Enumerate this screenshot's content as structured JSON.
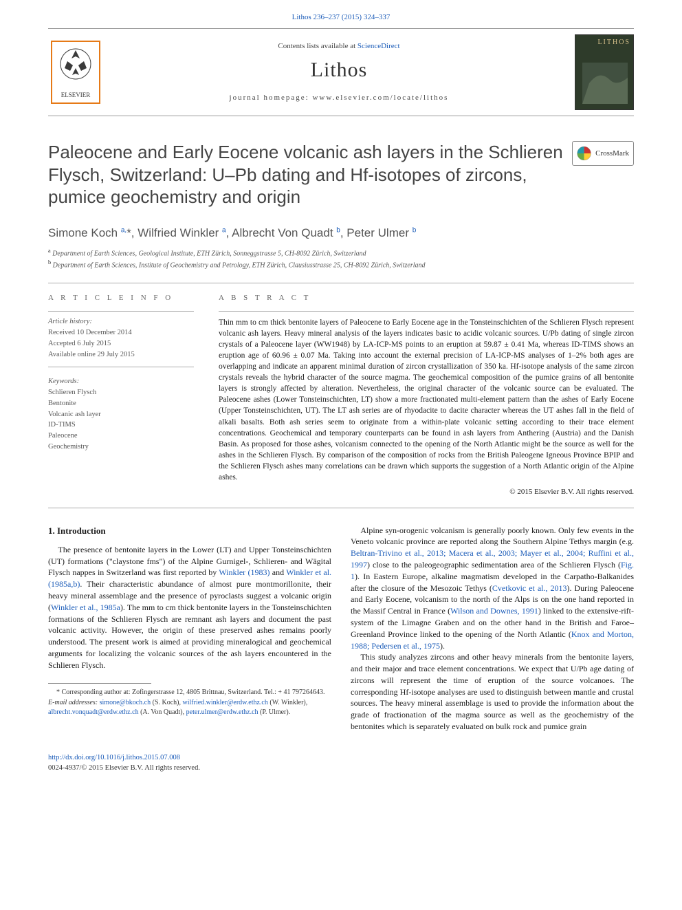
{
  "header": {
    "citation": "Lithos 236–237 (2015) 324–337",
    "contents_prefix": "Contents lists available at ",
    "contents_link": "ScienceDirect",
    "journal_name": "Lithos",
    "homepage_label": "journal homepage: ",
    "homepage_url": "www.elsevier.com/locate/lithos",
    "publisher_logo_colors": {
      "border": "#e67a17",
      "tree": "#3a3a3a"
    },
    "cover": {
      "bg": "#2e3b2a",
      "title": "LITHOS",
      "title_color": "#d6c08b"
    }
  },
  "crossmark": {
    "label": "CrossMark",
    "icon_colors": [
      "#c33",
      "#29a",
      "#fc3",
      "#6a4"
    ]
  },
  "article": {
    "title": "Paleocene and Early Eocene volcanic ash layers in the Schlieren Flysch, Switzerland: U–Pb dating and Hf-isotopes of zircons, pumice geochemistry and origin",
    "authors_html": "Simone Koch <sup>a,</sup>*, Wilfried Winkler <sup>a</sup>, Albrecht Von Quadt <sup>b</sup>, Peter Ulmer <sup>b</sup>",
    "affiliations": [
      {
        "sup": "a",
        "text": "Department of Earth Sciences, Geological Institute, ETH Zürich, Sonneggstrasse 5, CH-8092 Zürich, Switzerland"
      },
      {
        "sup": "b",
        "text": "Department of Earth Sciences, Institute of Geochemistry and Petrology, ETH Zürich, Clausiusstrasse 25, CH-8092 Zürich, Switzerland"
      }
    ]
  },
  "meta": {
    "info_heading": "A R T I C L E   I N F O",
    "history_heading": "Article history:",
    "history": [
      "Received 10 December 2014",
      "Accepted 6 July 2015",
      "Available online 29 July 2015"
    ],
    "keywords_heading": "Keywords:",
    "keywords": [
      "Schlieren Flysch",
      "Bentonite",
      "Volcanic ash layer",
      "ID-TIMS",
      "Paleocene",
      "Geochemistry"
    ],
    "abstract_heading": "A B S T R A C T",
    "abstract": "Thin mm to cm thick bentonite layers of Paleocene to Early Eocene age in the Tonsteinschichten of the Schlieren Flysch represent volcanic ash layers. Heavy mineral analysis of the layers indicates basic to acidic volcanic sources. U/Pb dating of single zircon crystals of a Paleocene layer (WW1948) by LA-ICP-MS points to an eruption at 59.87 ± 0.41 Ma, whereas ID-TIMS shows an eruption age of 60.96 ± 0.07 Ma. Taking into account the external precision of LA-ICP-MS analyses of 1–2% both ages are overlapping and indicate an apparent minimal duration of zircon crystallization of 350 ka. Hf-isotope analysis of the same zircon crystals reveals the hybrid character of the source magma. The geochemical composition of the pumice grains of all bentonite layers is strongly affected by alteration. Nevertheless, the original character of the volcanic source can be evaluated. The Paleocene ashes (Lower Tonsteinschichten, LT) show a more fractionated multi-element pattern than the ashes of Early Eocene (Upper Tonsteinschichten, UT). The LT ash series are of rhyodacite to dacite character whereas the UT ashes fall in the field of alkali basalts. Both ash series seem to originate from a within-plate volcanic setting according to their trace element concentrations. Geochemical and temporary counterparts can be found in ash layers from Anthering (Austria) and the Danish Basin. As proposed for those ashes, volcanism connected to the opening of the North Atlantic might be the source as well for the ashes in the Schlieren Flysch. By comparison of the composition of rocks from the British Paleogene Igneous Province BPIP and the Schlieren Flysch ashes many correlations can be drawn which supports the suggestion of a North Atlantic origin of the Alpine ashes.",
    "copyright": "© 2015 Elsevier B.V. All rights reserved."
  },
  "body": {
    "section_heading": "1. Introduction",
    "col1_p1_pre": "The presence of bentonite layers in the Lower (LT) and Upper Tonsteinschichten (UT) formations (\"claystone fms\") of the Alpine Gurnigel-, Schlieren- and Wägital Flysch nappes in Switzerland was first reported by ",
    "col1_p1_links": [
      "Winkler (1983)",
      "Winkler et al. (1985a,b)"
    ],
    "col1_p1_mid": " and ",
    "col1_p1_post": ". Their characteristic abundance of almost pure montmorillonite, their heavy mineral assemblage and the presence of pyroclasts suggest a volcanic origin (",
    "col1_p1_link3": "Winkler et al., 1985a",
    "col1_p1_end": "). The mm to cm thick bentonite layers in the Tonsteinschichten formations of the Schlieren Flysch are remnant ash layers and document the past volcanic activity. However, the origin of these preserved ashes remains poorly understood. The present work is aimed at providing mineralogical and geochemical arguments for localizing the volcanic sources of the ash layers encountered in the Schlieren Flysch.",
    "col2_p1_pre": "Alpine syn-orogenic volcanism is generally poorly known. Only few events in the Veneto volcanic province are reported along the Southern Alpine Tethys margin (e.g. ",
    "col2_p1_link1": "Beltran-Trivino et al., 2013; Macera et al., 2003; Mayer et al., 2004; Ruffini et al., 1997",
    "col2_p1_mid1": ") close to the paleogeographic sedimentation area of the Schlieren Flysch (",
    "col2_p1_link2": "Fig. 1",
    "col2_p1_mid2": "). In Eastern Europe, alkaline magmatism developed in the Carpatho-Balkanides after the closure of the Mesozoic Tethys (",
    "col2_p1_link3": "Cvetkovic et al., 2013",
    "col2_p1_mid3": "). During Paleocene and Early Eocene, volcanism to the north of the Alps is on the one hand reported in the Massif Central in France (",
    "col2_p1_link4": "Wilson and Downes, 1991",
    "col2_p1_mid4": ") linked to the extensive-rift-system of the Limagne Graben and on the other hand in the British and Faroe–Greenland Province linked to the opening of the North Atlantic (",
    "col2_p1_link5": "Knox and Morton, 1988; Pedersen et al., 1975",
    "col2_p1_end1": ").",
    "col2_p2": "This study analyzes zircons and other heavy minerals from the bentonite layers, and their major and trace element concentrations. We expect that U/Pb age dating of zircons will represent the time of eruption of the source volcanoes. The corresponding Hf-isotope analyses are used to distinguish between mantle and crustal sources. The heavy mineral assemblage is used to provide the information about the grade of fractionation of the magma source as well as the geochemistry of the bentonites which is separately evaluated on bulk rock and pumice grain"
  },
  "footnotes": {
    "corr": "* Corresponding author at: Zofingerstrasse 12, 4805 Brittnau, Switzerland. Tel.: + 41 797264643.",
    "email_label": "E-mail addresses: ",
    "emails": [
      {
        "addr": "simone@bkoch.ch",
        "who": "(S. Koch)"
      },
      {
        "addr": "wilfried.winkler@erdw.ethz.ch",
        "who": "(W. Winkler)"
      },
      {
        "addr": "albrecht.vonquadt@erdw.ethz.ch",
        "who": "(A. Von Quadt)"
      },
      {
        "addr": "peter.ulmer@erdw.ethz.ch",
        "who": "(P. Ulmer)"
      }
    ]
  },
  "footer": {
    "doi": "http://dx.doi.org/10.1016/j.lithos.2015.07.008",
    "issn_cpr": "0024-4937/© 2015 Elsevier B.V. All rights reserved."
  }
}
